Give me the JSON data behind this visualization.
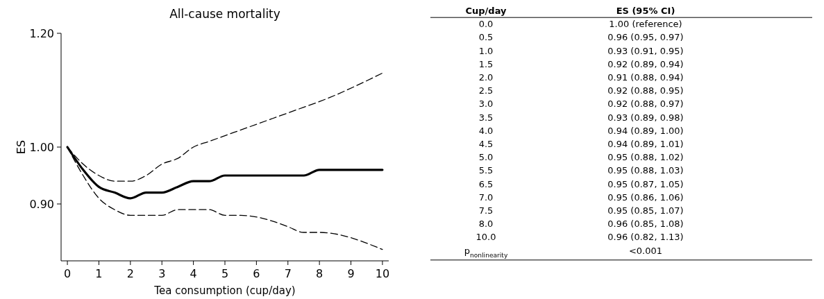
{
  "chart_data": [
    {
      "type": "line",
      "title": "All-cause mortality",
      "xlabel": "Tea consumption (cup/day)",
      "ylabel": "ES",
      "x": [
        0,
        0.5,
        1,
        1.5,
        2,
        2.5,
        3,
        3.5,
        4,
        4.5,
        5,
        5.5,
        6.5,
        7,
        7.5,
        8,
        10
      ],
      "series": [
        {
          "color": "#000000",
          "line_style": "solid",
          "values": [
            1.0,
            0.96,
            0.93,
            0.92,
            0.91,
            0.92,
            0.92,
            0.93,
            0.94,
            0.94,
            0.95,
            0.95,
            0.95,
            0.95,
            0.95,
            0.96,
            0.96
          ]
        },
        {
          "color": "#000000",
          "line_style": "dashed",
          "values": [
            1.0,
            0.95,
            0.91,
            0.89,
            0.88,
            0.88,
            0.88,
            0.89,
            0.89,
            0.89,
            0.88,
            0.88,
            0.87,
            0.86,
            0.85,
            0.85,
            0.82
          ]
        },
        {
          "color": "#000000",
          "line_style": "dashed",
          "values": [
            1.0,
            0.97,
            0.95,
            0.94,
            0.94,
            0.95,
            0.97,
            0.98,
            1.0,
            1.01,
            1.02,
            1.03,
            1.05,
            1.06,
            1.07,
            1.08,
            1.13
          ]
        }
      ],
      "xlim": [
        -0.2,
        10.2
      ],
      "xticks": [
        0,
        1,
        2,
        3,
        4,
        5,
        6,
        7,
        8,
        9,
        10
      ],
      "ylim": [
        0.8,
        1.2
      ],
      "yticks": [
        {
          "value": 0.9,
          "label": "0.90"
        },
        {
          "value": 1.0,
          "label": "1.00"
        },
        {
          "value": 1.2,
          "label": "1.20"
        }
      ]
    },
    {
      "type": "other",
      "xlabel": "Cup/day",
      "ylabel": "ES (95% CI)",
      "categories": [
        "0.0",
        "0.5",
        "1.0",
        "1.5",
        "2.0",
        "2.5",
        "3.0",
        "3.5",
        "4.0",
        "4.5",
        "5.0",
        "5.5",
        "6.5",
        "7.0",
        "7.5",
        "8.0",
        "10.0",
        "p$_{nonlinearity}$"
      ],
      "value_labels": [
        "1.00 (reference)",
        "0.96 (0.95, 0.97)",
        "0.93 (0.91, 0.95)",
        "0.92 (0.89, 0.94)",
        "0.91 (0.88, 0.94)",
        "0.92 (0.88, 0.95)",
        "0.92 (0.88, 0.97)",
        "0.93 (0.89, 0.98)",
        "0.94 (0.89, 1.00)",
        "0.94 (0.89, 1.01)",
        "0.95 (0.88, 1.02)",
        "0.95 (0.88, 1.03)",
        "0.95 (0.87, 1.05)",
        "0.95 (0.86, 1.06)",
        "0.95 (0.85, 1.07)",
        "0.96 (0.85, 1.08)",
        "0.96 (0.82, 1.13)",
        "<0.001"
      ]
    }
  ]
}
